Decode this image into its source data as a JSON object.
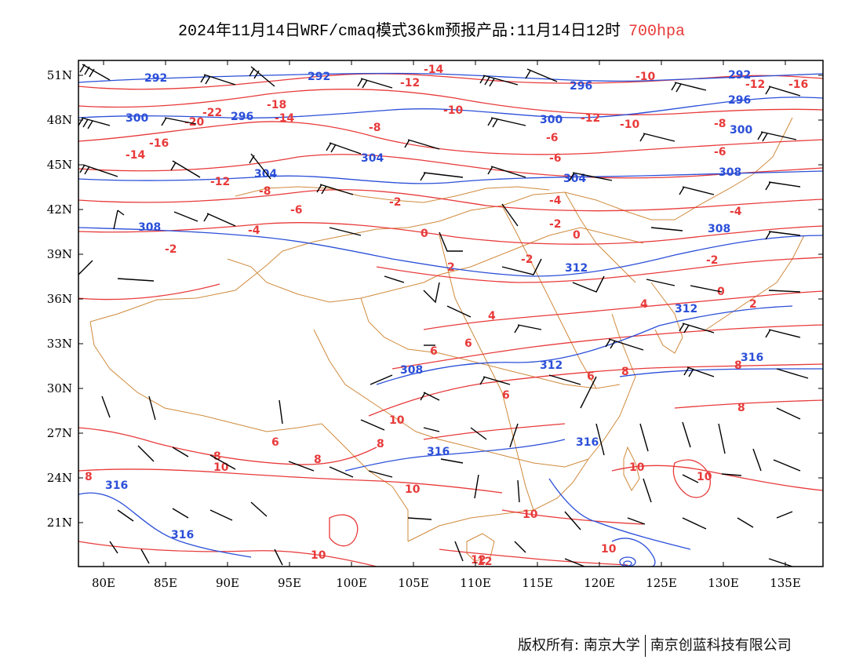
{
  "title": {
    "main": "2024年11月14日WRF/cmaq模式36km预报产品:11月14日12时",
    "level": "700hpa",
    "level_color": "#e83a3a"
  },
  "axes": {
    "x_ticks": [
      "80E",
      "85E",
      "90E",
      "95E",
      "100E",
      "105E",
      "110E",
      "115E",
      "120E",
      "125E",
      "130E",
      "135E"
    ],
    "y_ticks": [
      "51N",
      "48N",
      "45N",
      "42N",
      "39N",
      "36N",
      "33N",
      "30N",
      "27N",
      "24N",
      "21N"
    ],
    "lon_range": [
      78,
      138
    ],
    "lat_range": [
      18,
      52
    ]
  },
  "colors": {
    "temperature": "#e83a3a",
    "geopotential": "#2b4fd8",
    "borders": "#d08a3c",
    "wind": "#000000"
  },
  "temperature_labels": [
    "-14",
    "-12",
    "-18",
    "-12",
    "-10",
    "-16",
    "-14",
    "-8",
    "-20",
    "-22",
    "-12",
    "-6",
    "-16",
    "-14",
    "-10",
    "-8",
    "-6",
    "-12",
    "-6",
    "-4",
    "-8",
    "-6",
    "-4",
    "-10",
    "-2",
    "-2",
    "-4",
    "-2",
    "0",
    "0",
    "-2",
    "-2",
    "0",
    "2",
    "2",
    "4",
    "4",
    "6",
    "6",
    "6",
    "8",
    "6",
    "8",
    "6",
    "8",
    "10",
    "8",
    "10",
    "8",
    "10",
    "10",
    "10",
    "10",
    "12",
    "8",
    "8",
    "10",
    "12",
    "10"
  ],
  "geopotential_labels": [
    "292",
    "292",
    "296",
    "292",
    "296",
    "300",
    "296",
    "300",
    "300",
    "304",
    "304",
    "304",
    "308",
    "308",
    "308",
    "312",
    "308",
    "312",
    "312",
    "316",
    "316",
    "316",
    "316",
    "316"
  ],
  "credit": {
    "owner1": "版权所有: 南京大学",
    "owner2": "南京创蓝科技有限公司"
  }
}
